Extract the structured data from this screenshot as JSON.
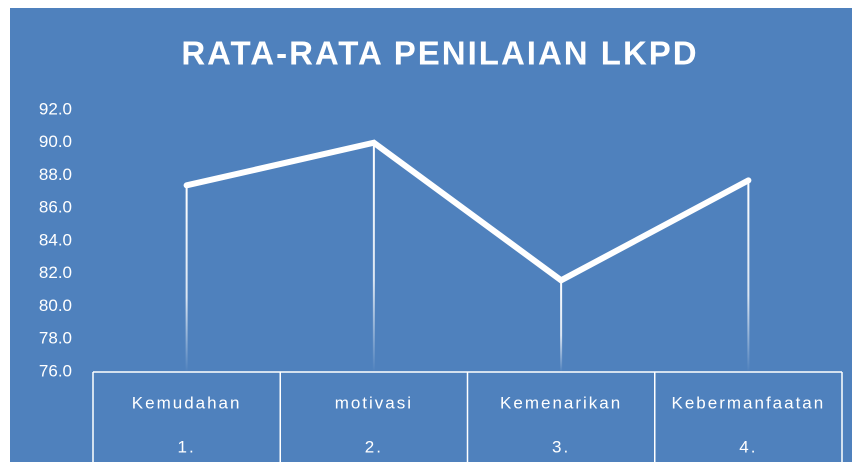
{
  "chart_data": {
    "type": "line",
    "title": "RATA-RATA PENILAIAN LKPD",
    "categories": [
      "Kemudahan",
      "motivasi",
      "Kemenarikan",
      "Kebermanfaatan"
    ],
    "category_numbers": [
      "1.",
      "2.",
      "3.",
      "4."
    ],
    "series": [
      {
        "name": "Rata-rata",
        "color": "#ffffff",
        "values": [
          87.4,
          90.0,
          81.6,
          87.7
        ]
      }
    ],
    "ylim": [
      76,
      92
    ],
    "yticks": [
      {
        "value": 76,
        "label": "76.0"
      },
      {
        "value": 78,
        "label": "78.0"
      },
      {
        "value": 80,
        "label": "80.0"
      },
      {
        "value": 82,
        "label": "82.0"
      },
      {
        "value": 84,
        "label": "84.0"
      },
      {
        "value": 86,
        "label": "86.0"
      },
      {
        "value": 88,
        "label": "88.0"
      },
      {
        "value": 90,
        "label": "90.0"
      },
      {
        "value": 92,
        "label": "92.0"
      }
    ],
    "drop_lines": true
  }
}
